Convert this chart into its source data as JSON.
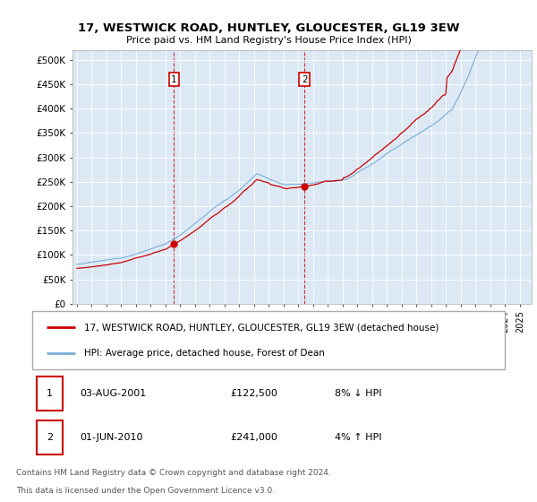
{
  "title": "17, WESTWICK ROAD, HUNTLEY, GLOUCESTER, GL19 3EW",
  "subtitle": "Price paid vs. HM Land Registry's House Price Index (HPI)",
  "bg_color": "#dce9f5",
  "sale1_x": 2001.58,
  "sale1_price": 122500,
  "sale2_x": 2010.42,
  "sale2_price": 241000,
  "legend_line1": "17, WESTWICK ROAD, HUNTLEY, GLOUCESTER, GL19 3EW (detached house)",
  "legend_line2": "HPI: Average price, detached house, Forest of Dean",
  "annotation1": [
    "1",
    "03-AUG-2001",
    "£122,500",
    "8% ↓ HPI"
  ],
  "annotation2": [
    "2",
    "01-JUN-2010",
    "£241,000",
    "4% ↑ HPI"
  ],
  "footnote1": "Contains HM Land Registry data © Crown copyright and database right 2024.",
  "footnote2": "This data is licensed under the Open Government Licence v3.0.",
  "ylim_max": 500000,
  "yticks": [
    0,
    50000,
    100000,
    150000,
    200000,
    250000,
    300000,
    350000,
    400000,
    450000,
    500000
  ],
  "xmin": 1994.7,
  "xmax": 2025.8,
  "line_red": "#cc0000",
  "line_blue": "#7aaed6",
  "start_year": 1995,
  "end_year": 2026
}
